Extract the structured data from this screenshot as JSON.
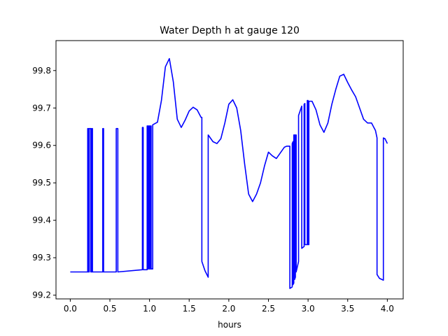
{
  "chart_data": {
    "type": "line",
    "title": "Water Depth h at gauge 120",
    "xlabel": "hours",
    "ylabel": "",
    "xlim": [
      -0.18,
      4.2
    ],
    "ylim": [
      99.19,
      99.88
    ],
    "xticks": [
      0.0,
      0.5,
      1.0,
      1.5,
      2.0,
      2.5,
      3.0,
      3.5,
      4.0
    ],
    "xtick_labels": [
      "0.0",
      "0.5",
      "1.0",
      "1.5",
      "2.0",
      "2.5",
      "3.0",
      "3.5",
      "4.0"
    ],
    "yticks": [
      99.2,
      99.3,
      99.4,
      99.5,
      99.6,
      99.7,
      99.8
    ],
    "ytick_labels": [
      "99.2",
      "99.3",
      "99.4",
      "99.5",
      "99.6",
      "99.7",
      "99.8"
    ],
    "grid": false,
    "series": [
      {
        "color": "#0000ff",
        "x": [
          0.0,
          0.22,
          0.22,
          0.23,
          0.23,
          0.24,
          0.24,
          0.26,
          0.26,
          0.27,
          0.27,
          0.28,
          0.28,
          0.41,
          0.41,
          0.42,
          0.42,
          0.43,
          0.43,
          0.58,
          0.58,
          0.6,
          0.6,
          0.91,
          0.91,
          0.92,
          0.92,
          0.97,
          0.97,
          0.98,
          0.98,
          0.99,
          0.99,
          1.0,
          1.0,
          1.01,
          1.01,
          1.02,
          1.02,
          1.04,
          1.04,
          1.1,
          1.15,
          1.2,
          1.25,
          1.3,
          1.35,
          1.4,
          1.45,
          1.5,
          1.55,
          1.6,
          1.65,
          1.66,
          1.66,
          1.7,
          1.74,
          1.74,
          1.8,
          1.85,
          1.9,
          1.95,
          2.0,
          2.05,
          2.1,
          2.15,
          2.2,
          2.25,
          2.3,
          2.35,
          2.4,
          2.45,
          2.5,
          2.55,
          2.6,
          2.65,
          2.7,
          2.73,
          2.76,
          2.77,
          2.77,
          2.8,
          2.8,
          2.81,
          2.81,
          2.82,
          2.82,
          2.83,
          2.83,
          2.84,
          2.84,
          2.85,
          2.85,
          2.88,
          2.88,
          2.92,
          2.92,
          2.95,
          2.95,
          2.96,
          2.96,
          2.99,
          2.99,
          3.0,
          3.0,
          3.01,
          3.01,
          3.02,
          3.02,
          3.05,
          3.1,
          3.15,
          3.2,
          3.25,
          3.3,
          3.35,
          3.4,
          3.45,
          3.5,
          3.55,
          3.6,
          3.65,
          3.7,
          3.75,
          3.8,
          3.85,
          3.87,
          3.87,
          3.9,
          3.95,
          3.95,
          3.97,
          4.0
        ],
        "y": [
          99.262,
          99.262,
          99.645,
          99.645,
          99.262,
          99.262,
          99.645,
          99.645,
          99.262,
          99.262,
          99.645,
          99.645,
          99.262,
          99.262,
          99.645,
          99.645,
          99.262,
          99.262,
          99.262,
          99.262,
          99.645,
          99.645,
          99.262,
          99.268,
          99.648,
          99.648,
          99.268,
          99.268,
          99.652,
          99.652,
          99.27,
          99.27,
          99.652,
          99.652,
          99.27,
          99.27,
          99.652,
          99.652,
          99.27,
          99.27,
          99.655,
          99.662,
          99.72,
          99.81,
          99.832,
          99.77,
          99.67,
          99.648,
          99.668,
          99.692,
          99.702,
          99.695,
          99.675,
          99.675,
          99.29,
          99.265,
          99.248,
          99.628,
          99.61,
          99.605,
          99.618,
          99.66,
          99.71,
          99.722,
          99.7,
          99.64,
          99.55,
          99.47,
          99.45,
          99.47,
          99.5,
          99.545,
          99.582,
          99.572,
          99.565,
          99.58,
          99.595,
          99.598,
          99.598,
          99.598,
          99.218,
          99.222,
          99.605,
          99.61,
          99.228,
          99.232,
          99.628,
          99.628,
          99.242,
          99.248,
          99.628,
          99.628,
          99.262,
          99.29,
          99.68,
          99.705,
          99.325,
          99.33,
          99.71,
          99.712,
          99.335,
          99.335,
          99.72,
          99.72,
          99.335,
          99.335,
          99.718,
          99.718,
          99.718,
          99.718,
          99.695,
          99.655,
          99.635,
          99.66,
          99.71,
          99.75,
          99.785,
          99.79,
          99.768,
          99.748,
          99.73,
          99.7,
          99.67,
          99.66,
          99.66,
          99.64,
          99.62,
          99.255,
          99.245,
          99.24,
          99.62,
          99.618,
          99.605
        ]
      }
    ]
  }
}
